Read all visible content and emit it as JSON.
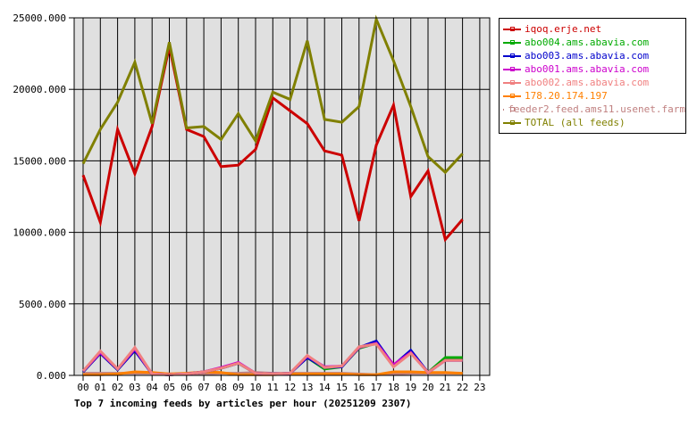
{
  "chart_data": {
    "type": "line",
    "title": "Top 7 incoming feeds by articles per hour (20251209 2307)",
    "xlabel": "",
    "ylabel": "",
    "ylim": [
      0,
      25000
    ],
    "yticks": [
      "0.000",
      "5000.000",
      "10000.000",
      "15000.000",
      "20000.000",
      "25000.000"
    ],
    "ytick_values": [
      0,
      5000,
      10000,
      15000,
      20000,
      25000
    ],
    "categories": [
      "00",
      "01",
      "02",
      "03",
      "04",
      "05",
      "06",
      "07",
      "08",
      "09",
      "10",
      "11",
      "12",
      "13",
      "14",
      "15",
      "16",
      "17",
      "18",
      "19",
      "20",
      "21",
      "22",
      "23"
    ],
    "grid": true,
    "legend_position": "right",
    "series": [
      {
        "name": "iqoq.erje.net",
        "color": "#cc0000",
        "values": [
          14000,
          10700,
          17200,
          14100,
          17400,
          23000,
          17200,
          16700,
          14600,
          14700,
          15800,
          19400,
          18500,
          17600,
          15700,
          15400,
          10800,
          16100,
          18900,
          12500,
          14300,
          9500,
          10900
        ]
      },
      {
        "name": "abo004.ams.abavia.com",
        "color": "#00aa00",
        "values": [
          250,
          1550,
          400,
          1750,
          100,
          50,
          100,
          250,
          500,
          850,
          150,
          100,
          150,
          1250,
          450,
          600,
          1900,
          2250,
          650,
          1650,
          200,
          1250,
          1250
        ]
      },
      {
        "name": "abo003.ams.abavia.com",
        "color": "#0000cc",
        "values": [
          250,
          1550,
          400,
          1750,
          100,
          50,
          100,
          250,
          500,
          850,
          150,
          100,
          150,
          1250,
          550,
          600,
          1950,
          2400,
          700,
          1750,
          200,
          1050,
          1050
        ]
      },
      {
        "name": "abo001.ams.abavia.com",
        "color": "#cc00cc",
        "values": [
          300,
          1600,
          450,
          1850,
          100,
          50,
          100,
          250,
          550,
          900,
          150,
          100,
          150,
          1350,
          600,
          650,
          1950,
          2250,
          750,
          1600,
          200,
          1050,
          1050
        ]
      },
      {
        "name": "abo002.ams.abavia.com",
        "color": "#f08080",
        "values": [
          300,
          1700,
          450,
          1950,
          100,
          50,
          100,
          250,
          500,
          850,
          150,
          100,
          150,
          1400,
          550,
          650,
          2000,
          2200,
          600,
          1550,
          200,
          1050,
          1050
        ]
      },
      {
        "name": "178.20.174.197",
        "color": "#ff8000",
        "values": [
          50,
          50,
          100,
          250,
          200,
          100,
          150,
          250,
          200,
          50,
          50,
          50,
          100,
          100,
          100,
          100,
          50,
          50,
          250,
          250,
          200,
          200,
          150
        ]
      },
      {
        "name": "feeder2.feed.ams11.usenet.farm",
        "color": "#c08080",
        "values": [
          150,
          150,
          150,
          150,
          150,
          100,
          100,
          100,
          150,
          150,
          200,
          150,
          150,
          150,
          150,
          150,
          100,
          50,
          100,
          150,
          150,
          150,
          150
        ]
      },
      {
        "name": "TOTAL (all feeds)",
        "color": "#808000",
        "values": [
          14800,
          17200,
          19100,
          21900,
          17600,
          23300,
          17300,
          17400,
          16500,
          18300,
          16400,
          19800,
          19300,
          23400,
          17900,
          17700,
          18800,
          24900,
          22000,
          18800,
          15300,
          14200,
          15500
        ]
      }
    ]
  },
  "legend": {
    "items": [
      {
        "label": "iqoq.erje.net",
        "color": "#cc0000"
      },
      {
        "label": "abo004.ams.abavia.com",
        "color": "#00aa00"
      },
      {
        "label": "abo003.ams.abavia.com",
        "color": "#0000cc"
      },
      {
        "label": "abo001.ams.abavia.com",
        "color": "#cc00cc"
      },
      {
        "label": "abo002.ams.abavia.com",
        "color": "#f08080"
      },
      {
        "label": "178.20.174.197",
        "color": "#ff8000"
      },
      {
        "label": "feeder2.feed.ams11.usenet.farm",
        "color": "#c08080"
      },
      {
        "label": "TOTAL (all feeds)",
        "color": "#808000"
      }
    ]
  },
  "colors": {
    "plot_background": "#e0e0e0",
    "grid": "#000000",
    "axis": "#000000"
  }
}
